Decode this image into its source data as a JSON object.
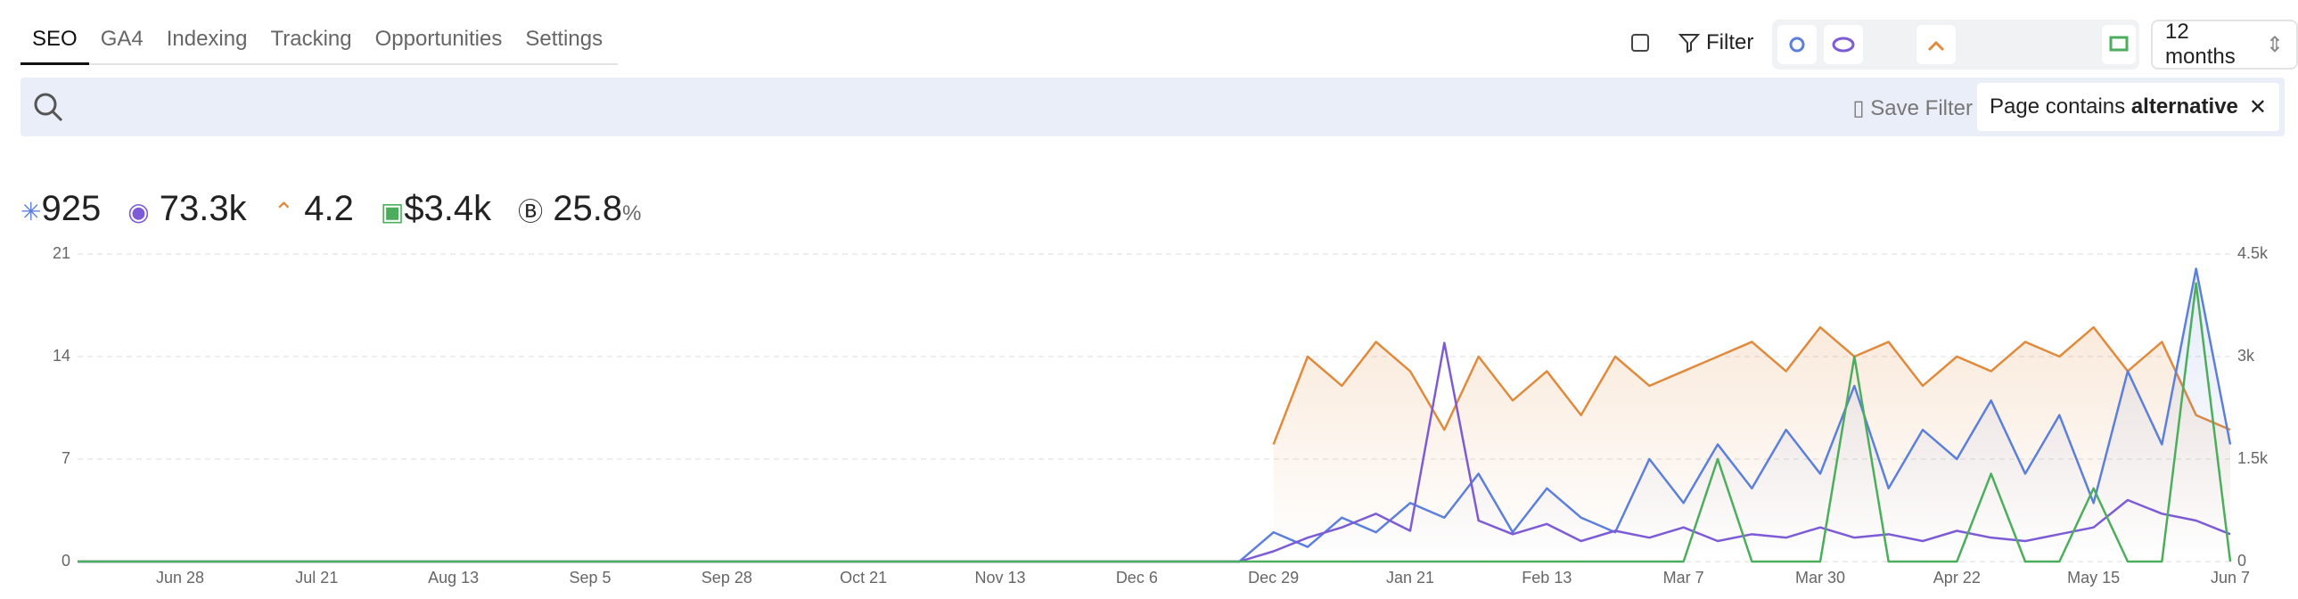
{
  "tabs": [
    "SEO",
    "GA4",
    "Indexing",
    "Tracking",
    "Opportunities",
    "Settings"
  ],
  "toolbar": {
    "filter": "Filter",
    "range": "12 months"
  },
  "search": {
    "save": "Save Filter",
    "chip_prefix": "Page contains",
    "chip_value": "alternative"
  },
  "metrics": [
    {
      "value": "925"
    },
    {
      "value": "73.3k"
    },
    {
      "value": "4.2"
    },
    {
      "value": "$3.4k"
    },
    {
      "value": "25.8",
      "unit": "%"
    }
  ],
  "chart_data": {
    "type": "line",
    "categories": [
      null,
      null,
      null,
      "Jun 28",
      null,
      null,
      null,
      "Jul 21",
      null,
      null,
      null,
      "Aug 13",
      null,
      null,
      null,
      "Sep 5",
      null,
      null,
      null,
      "Sep 28",
      null,
      null,
      null,
      "Oct 21",
      null,
      null,
      null,
      "Nov 13",
      null,
      null,
      null,
      "Dec 6",
      null,
      null,
      null,
      "Dec 29",
      null,
      null,
      null,
      "Jan 21",
      null,
      null,
      null,
      "Feb 13",
      null,
      null,
      null,
      "Mar 7",
      null,
      null,
      null,
      "Mar 30",
      null,
      null,
      null,
      "Apr 22",
      null,
      null,
      null,
      "May 15",
      null,
      null,
      null,
      "Jun 7"
    ],
    "ylim": [
      0,
      21
    ],
    "yticks": [
      0,
      7,
      14,
      21
    ],
    "y2lim": [
      0,
      4500
    ],
    "y2ticks": [
      0,
      {
        "value": 1500,
        "label": "1.5k"
      },
      {
        "value": 3000,
        "label": "3k"
      },
      {
        "value": 4500,
        "label": "4.5k"
      }
    ],
    "grid": true,
    "series": [
      {
        "color": "#e08a3c",
        "area": true,
        "values": [
          null,
          null,
          null,
          null,
          null,
          null,
          null,
          null,
          null,
          null,
          null,
          null,
          null,
          null,
          null,
          null,
          null,
          null,
          null,
          null,
          null,
          null,
          null,
          null,
          null,
          null,
          null,
          null,
          null,
          null,
          null,
          null,
          null,
          null,
          null,
          8,
          14,
          12,
          15,
          13,
          9,
          14,
          11,
          13,
          10,
          14,
          12,
          13,
          14,
          15,
          13,
          16,
          14,
          15,
          12,
          14,
          13,
          15,
          14,
          16,
          13,
          15,
          10,
          9
        ]
      },
      {
        "color": "#5b7fdb",
        "area": true,
        "values": [
          0,
          0,
          0,
          0,
          0,
          0,
          0,
          0,
          0,
          0,
          0,
          0,
          0,
          0,
          0,
          0,
          0,
          0,
          0,
          0,
          0,
          0,
          0,
          0,
          0,
          0,
          0,
          0,
          0,
          0,
          0,
          0,
          0,
          0,
          0,
          2,
          1,
          3,
          2,
          4,
          3,
          6,
          2,
          5,
          3,
          2,
          7,
          4,
          8,
          5,
          9,
          6,
          12,
          5,
          9,
          7,
          11,
          6,
          10,
          4,
          13,
          8,
          20,
          8
        ]
      },
      {
        "color": "#7d5bd6",
        "axis": "y2",
        "values": [
          0,
          0,
          0,
          0,
          0,
          0,
          0,
          0,
          0,
          0,
          0,
          0,
          0,
          0,
          0,
          0,
          0,
          0,
          0,
          0,
          0,
          0,
          0,
          0,
          0,
          0,
          0,
          0,
          0,
          0,
          0,
          0,
          0,
          0,
          0,
          150,
          350,
          500,
          700,
          450,
          3200,
          600,
          400,
          550,
          300,
          450,
          350,
          500,
          300,
          400,
          350,
          500,
          350,
          400,
          300,
          450,
          350,
          300,
          400,
          500,
          900,
          700,
          600,
          400
        ]
      },
      {
        "color": "#4cae5c",
        "values": [
          0,
          0,
          0,
          0,
          0,
          0,
          0,
          0,
          0,
          0,
          0,
          0,
          0,
          0,
          0,
          0,
          0,
          0,
          0,
          0,
          0,
          0,
          0,
          0,
          0,
          0,
          0,
          0,
          0,
          0,
          0,
          0,
          0,
          0,
          0,
          0,
          0,
          0,
          0,
          0,
          0,
          0,
          0,
          0,
          0,
          0,
          0,
          0,
          7,
          0,
          0,
          0,
          14,
          0,
          0,
          0,
          6,
          0,
          0,
          5,
          0,
          0,
          19,
          0
        ]
      }
    ]
  }
}
